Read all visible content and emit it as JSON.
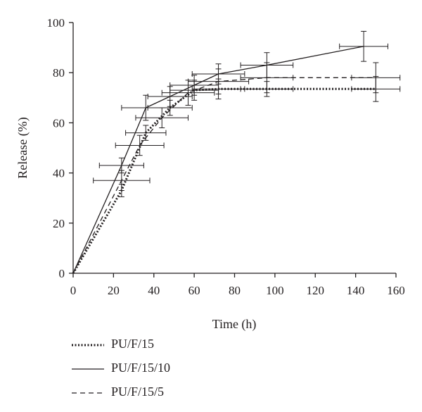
{
  "chart_data": {
    "type": "line",
    "title": "",
    "xlabel": "Time (h)",
    "ylabel": "Release (%)",
    "xlim": [
      0,
      160
    ],
    "ylim": [
      0,
      100
    ],
    "xticks": [
      "0",
      "20",
      "40",
      "60",
      "80",
      "100",
      "120",
      "140",
      "160"
    ],
    "yticks": [
      "0",
      "20",
      "40",
      "60",
      "80",
      "100"
    ],
    "grid": false,
    "legend_position": "bottom",
    "series": [
      {
        "name": "PU/F/15",
        "line_style": "dotted",
        "points": [
          {
            "x": 0,
            "y": 0,
            "xerr": 0,
            "yerr": 0
          },
          {
            "x": 24,
            "y": 33,
            "xerr": 0,
            "yerr": 2.5
          },
          {
            "x": 36,
            "y": 56,
            "xerr": 10,
            "yerr": 3
          },
          {
            "x": 48,
            "y": 66,
            "xerr": 11,
            "yerr": 3
          },
          {
            "x": 60,
            "y": 73,
            "xerr": 12,
            "yerr": 4
          },
          {
            "x": 72,
            "y": 73.5,
            "xerr": 13,
            "yerr": 4
          },
          {
            "x": 96,
            "y": 73.5,
            "xerr": 13,
            "yerr": 3
          },
          {
            "x": 150,
            "y": 73.5,
            "xerr": 12,
            "yerr": 5
          }
        ]
      },
      {
        "name": "PU/F/15/10",
        "line_style": "solid",
        "points": [
          {
            "x": 0,
            "y": 0,
            "xerr": 0,
            "yerr": 0
          },
          {
            "x": 24,
            "y": 43,
            "xerr": 11,
            "yerr": 3
          },
          {
            "x": 36,
            "y": 66,
            "xerr": 12,
            "yerr": 5
          },
          {
            "x": 48,
            "y": 70.5,
            "xerr": 11,
            "yerr": 4
          },
          {
            "x": 60,
            "y": 75,
            "xerr": 12,
            "yerr": 4
          },
          {
            "x": 72,
            "y": 79.5,
            "xerr": 13,
            "yerr": 4
          },
          {
            "x": 96,
            "y": 83,
            "xerr": 13,
            "yerr": 5
          },
          {
            "x": 144,
            "y": 90.5,
            "xerr": 12,
            "yerr": 6
          }
        ]
      },
      {
        "name": "PU/F/15/5",
        "line_style": "dashed",
        "points": [
          {
            "x": 0,
            "y": 0,
            "xerr": 0,
            "yerr": 0
          },
          {
            "x": 24,
            "y": 37,
            "xerr": 14,
            "yerr": 4
          },
          {
            "x": 33,
            "y": 51,
            "xerr": 12,
            "yerr": 4
          },
          {
            "x": 44,
            "y": 62,
            "xerr": 13,
            "yerr": 4
          },
          {
            "x": 57,
            "y": 72,
            "xerr": 13,
            "yerr": 5
          },
          {
            "x": 72,
            "y": 76.5,
            "xerr": 15,
            "yerr": 5
          },
          {
            "x": 96,
            "y": 78,
            "xerr": 13,
            "yerr": 6
          },
          {
            "x": 150,
            "y": 78,
            "xerr": 12,
            "yerr": 6
          }
        ]
      }
    ]
  }
}
